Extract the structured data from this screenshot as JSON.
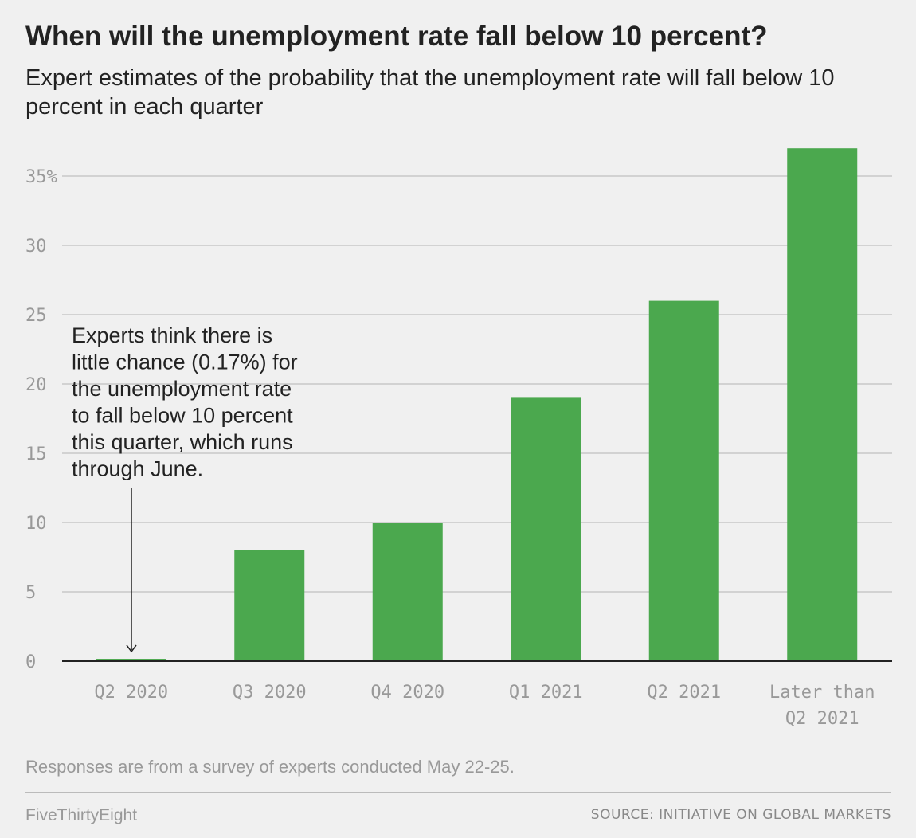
{
  "header": {
    "title": "When will the unemployment rate fall below 10 percent?",
    "subtitle": "Expert estimates of the probability that the unemployment rate will fall below 10 percent in each quarter"
  },
  "chart_data": {
    "type": "bar",
    "categories": [
      "Q2 2020",
      "Q3 2020",
      "Q4 2020",
      "Q1 2021",
      "Q2 2021",
      "Later than Q2 2021"
    ],
    "category_tick_lines": [
      [
        "Q2 2020"
      ],
      [
        "Q3 2020"
      ],
      [
        "Q4 2020"
      ],
      [
        "Q1 2021"
      ],
      [
        "Q2 2021"
      ],
      [
        "Later than",
        "Q2 2021"
      ]
    ],
    "values": [
      0.17,
      8,
      10,
      19,
      26,
      37
    ],
    "ylim": [
      0,
      37
    ],
    "yticks": [
      0,
      5,
      10,
      15,
      20,
      25,
      30,
      35
    ],
    "ytick_labels": [
      "0",
      "5",
      "10",
      "15",
      "20",
      "25",
      "30",
      "35%"
    ],
    "grid": true,
    "bar_color": "#4ba84e",
    "annotation": {
      "category": "Q2 2020",
      "lines": [
        "Experts think there is",
        "little chance (0.17%) for",
        "the unemployment rate",
        "to fall below 10 percent",
        "this quarter, which runs",
        "through June."
      ]
    }
  },
  "footer": {
    "note": "Responses are from a survey of experts conducted May 22-25.",
    "brand": "FiveThirtyEight",
    "source": "SOURCE:  INITIATIVE ON GLOBAL MARKETS"
  }
}
